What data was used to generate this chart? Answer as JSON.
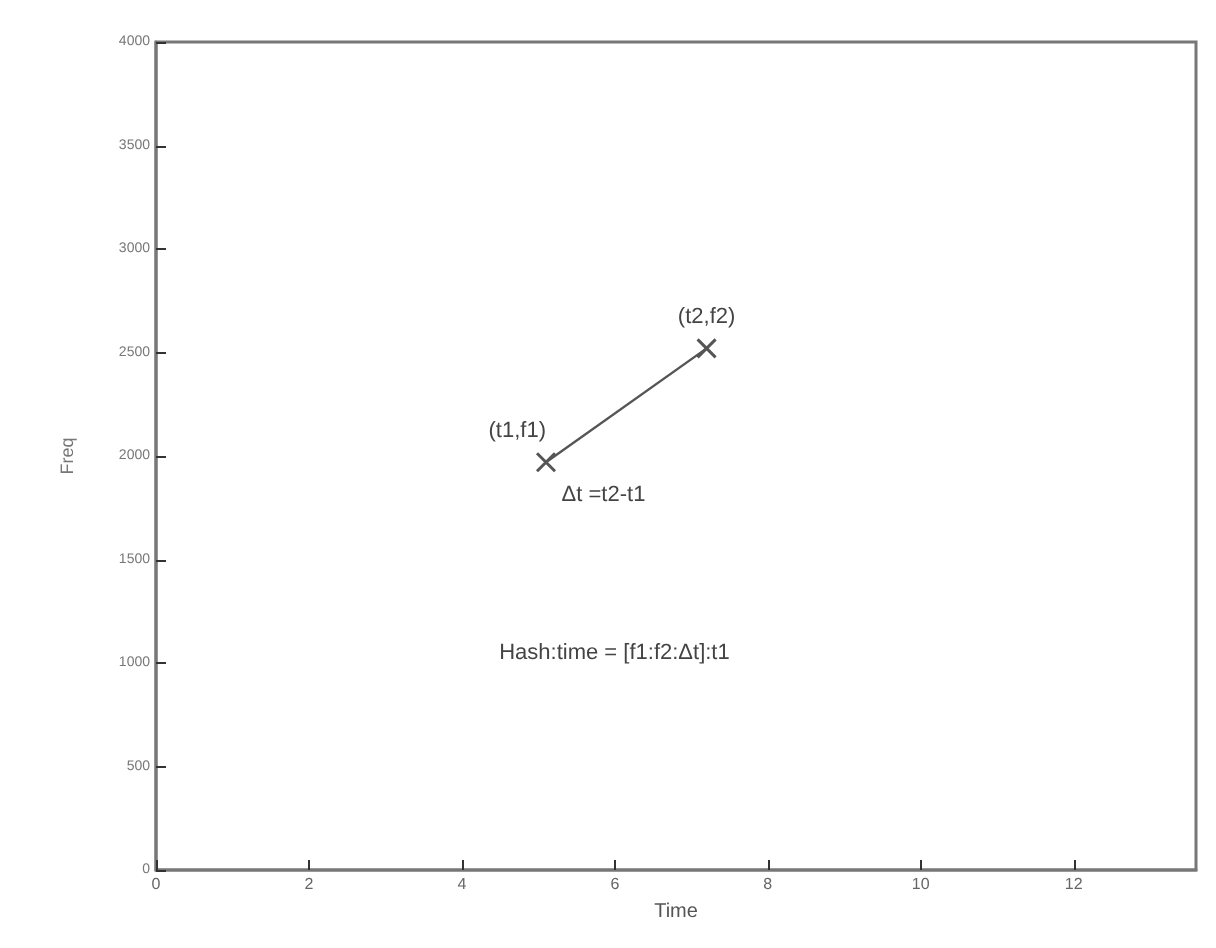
{
  "chart_data": {
    "type": "line",
    "xlabel": "Time",
    "ylabel": "Freq",
    "x": [
      5.1,
      7.2
    ],
    "series": [
      {
        "color": "#555555",
        "values": [
          1970,
          2520
        ]
      }
    ],
    "marker": "cross",
    "line_style": "solid",
    "xlim": [
      0,
      13.6
    ],
    "xticks": [
      0,
      2,
      4,
      6,
      8,
      10,
      12
    ],
    "ylim": [
      0,
      4000
    ],
    "yticks": [
      0,
      500,
      1000,
      1500,
      2000,
      2500,
      3000,
      3500,
      4000
    ],
    "grid": false,
    "annotations": [
      {
        "text": "(t1,f1)",
        "x": 5.1,
        "y": 1970
      },
      {
        "text": "(t2,f2)",
        "x": 7.2,
        "y": 2520
      },
      "Δt =t2-t1",
      "Hash:time = [f1:f2:Δt]:t1"
    ]
  }
}
